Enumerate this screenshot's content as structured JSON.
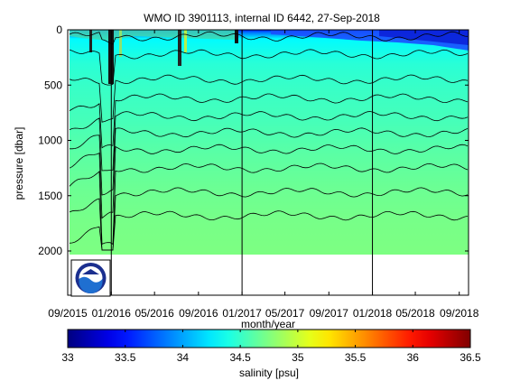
{
  "chart_data": {
    "type": "heatmap",
    "title": "WMO ID 3901113, internal ID 6442, 27-Sep-2018",
    "xlabel": "month/year",
    "ylabel": "pressure [dbar]",
    "x_tick_labels": [
      "09/2015",
      "01/2016",
      "05/2016",
      "09/2016",
      "01/2017",
      "05/2017",
      "09/2017",
      "01/2018",
      "05/2018",
      "09/2018"
    ],
    "x_ticks": [
      "2015-09-01",
      "2016-01-01",
      "2016-05-01",
      "2016-09-01",
      "2017-01-01",
      "2017-05-01",
      "2017-09-01",
      "2018-01-01",
      "2018-05-01",
      "2018-09-01"
    ],
    "xlim": [
      "2015-09-01",
      "2018-09-27"
    ],
    "y_ticks": [
      0,
      500,
      1000,
      1500,
      2000
    ],
    "ylim": [
      2400,
      0
    ],
    "y_reversed": true,
    "data_max_pressure": 2000,
    "vertical_markers": [
      "2016-01-01",
      "2017-01-01",
      "2018-01-01"
    ],
    "colorbar": {
      "label": "salinity [psu]",
      "range": [
        33,
        36.5
      ],
      "ticks": [
        33,
        33.5,
        34,
        34.5,
        35,
        35.5,
        36,
        36.5
      ],
      "colormap": "jet"
    },
    "profile_gradient": [
      {
        "pressure": 0,
        "salinity": 33.5
      },
      {
        "pressure": 20,
        "salinity": 33.8
      },
      {
        "pressure": 80,
        "salinity": 34.3
      },
      {
        "pressure": 300,
        "salinity": 34.45
      },
      {
        "pressure": 500,
        "salinity": 34.5
      },
      {
        "pressure": 800,
        "salinity": 34.55
      },
      {
        "pressure": 1100,
        "salinity": 34.62
      },
      {
        "pressure": 1400,
        "salinity": 34.68
      },
      {
        "pressure": 1700,
        "salinity": 34.72
      },
      {
        "pressure": 2000,
        "salinity": 34.74
      }
    ],
    "contour_depths": [
      60,
      220,
      450,
      620,
      780,
      930,
      1080,
      1250,
      1470,
      1680
    ]
  },
  "logo": {
    "name": "NOAA"
  }
}
